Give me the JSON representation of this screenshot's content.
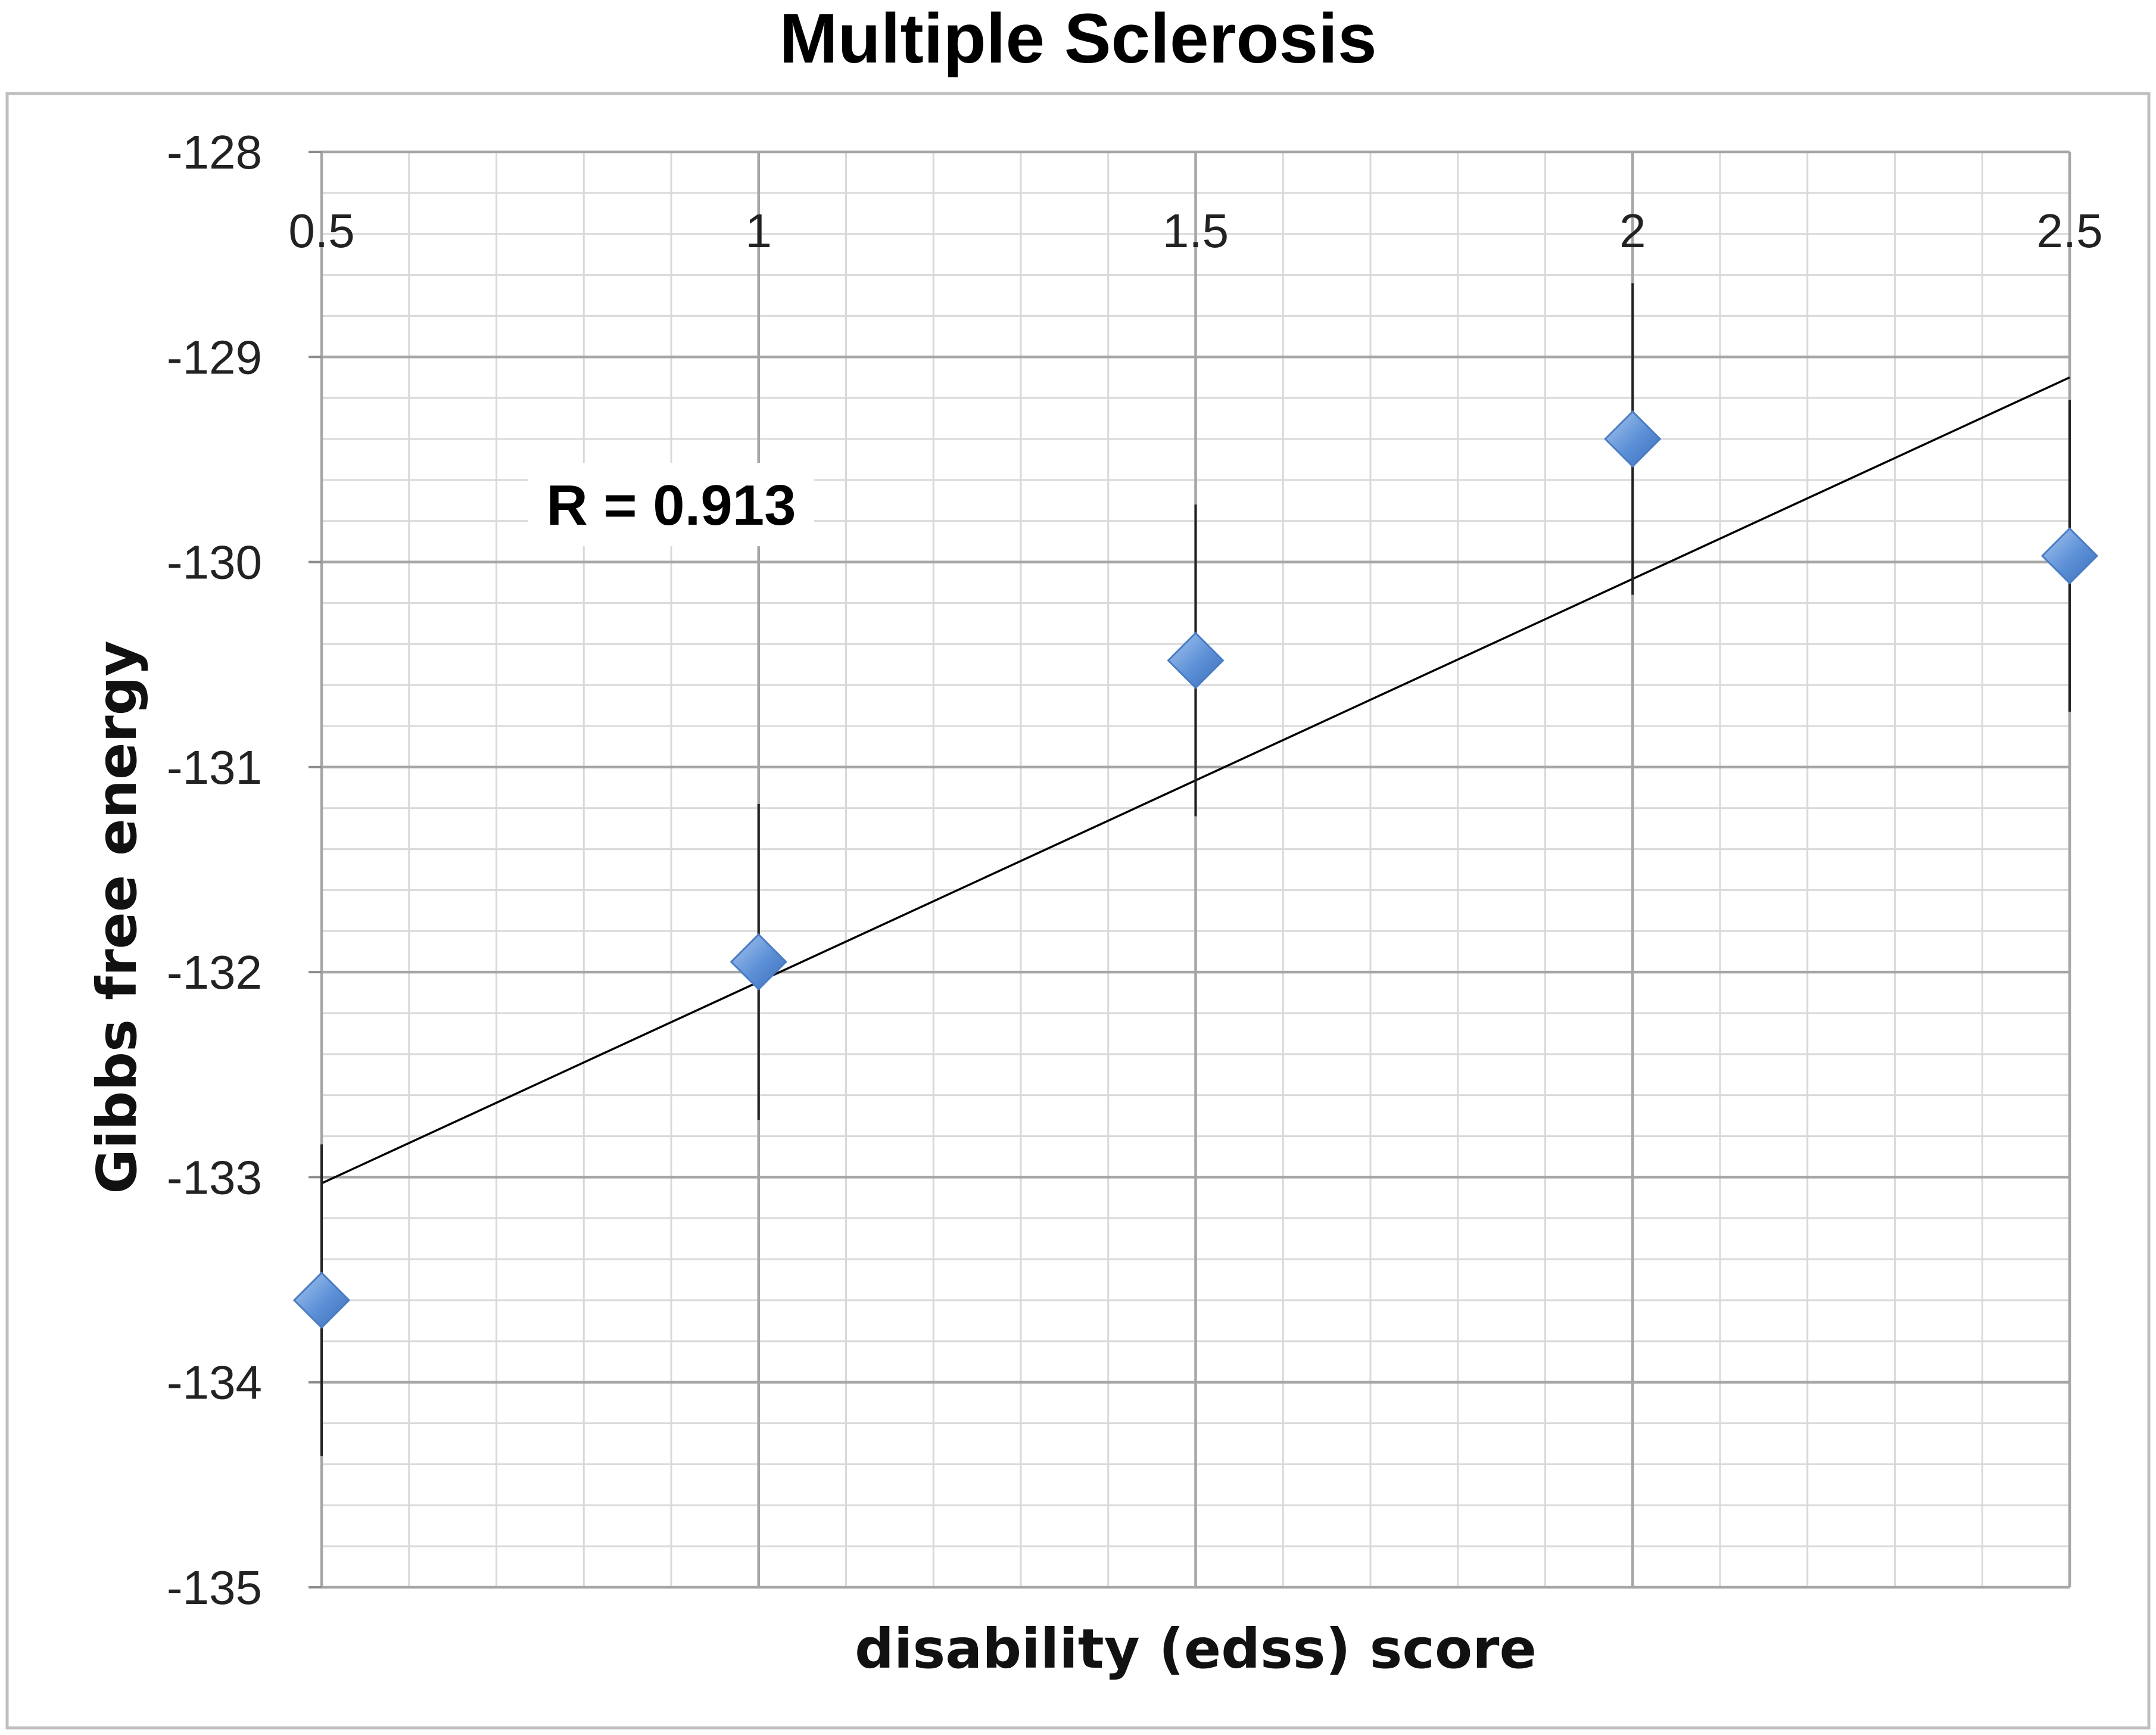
{
  "chart_data": {
    "type": "scatter",
    "title": "Multiple Sclerosis",
    "xlabel": "disability (edss) score",
    "ylabel": "Gibbs free energy",
    "xlim": [
      0.5,
      2.5
    ],
    "ylim": [
      -135,
      -128
    ],
    "x_ticks": [
      "0.5",
      "1",
      "1.5",
      "2",
      "2.5"
    ],
    "y_ticks": [
      "-128",
      "-129",
      "-130",
      "-131",
      "-132",
      "-133",
      "-134",
      "-135"
    ],
    "x_minor_step": 0.1,
    "y_minor_step": 0.2,
    "grid": true,
    "legend": "none",
    "series": [
      {
        "name": "Gibbs free energy",
        "marker": "diamond",
        "color": "#5b8fd6",
        "x": [
          0.5,
          1.0,
          1.5,
          2.0,
          2.5
        ],
        "y": [
          -133.6,
          -131.95,
          -130.48,
          -129.4,
          -129.97
        ],
        "error": [
          0.76,
          0.77,
          0.76,
          0.76,
          0.76
        ]
      }
    ],
    "trendline": {
      "x": [
        0.5,
        2.5
      ],
      "y": [
        -133.03,
        -129.1
      ],
      "color": "#000000"
    },
    "annotation": {
      "text": "R = 0.913",
      "x": 0.9,
      "y": -129.72
    }
  }
}
